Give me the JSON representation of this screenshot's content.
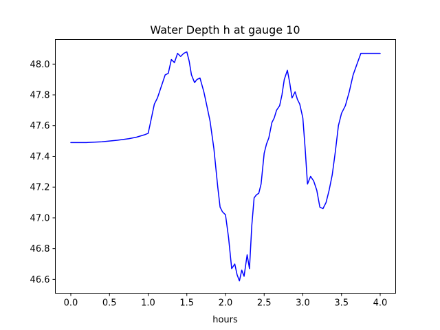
{
  "chart_data": {
    "type": "line",
    "title": "Water Depth h at gauge 10",
    "xlabel": "hours",
    "ylabel": "",
    "xlim": [
      -0.2,
      4.2
    ],
    "ylim": [
      46.51,
      48.16
    ],
    "xticks": [
      0.0,
      0.5,
      1.0,
      1.5,
      2.0,
      2.5,
      3.0,
      3.5,
      4.0
    ],
    "xtick_labels": [
      "0.0",
      "0.5",
      "1.0",
      "1.5",
      "2.0",
      "2.5",
      "3.0",
      "3.5",
      "4.0"
    ],
    "yticks": [
      46.6,
      46.8,
      47.0,
      47.2,
      47.4,
      47.6,
      47.8,
      48.0
    ],
    "ytick_labels": [
      "46.6",
      "46.8",
      "47.0",
      "47.2",
      "47.4",
      "47.6",
      "47.8",
      "48.0"
    ],
    "grid": false,
    "series": [
      {
        "color": "#0000ff",
        "x": [
          0.0,
          0.2,
          0.4,
          0.6,
          0.75,
          0.85,
          0.95,
          1.0,
          1.03,
          1.08,
          1.12,
          1.18,
          1.22,
          1.26,
          1.3,
          1.34,
          1.38,
          1.42,
          1.46,
          1.5,
          1.53,
          1.56,
          1.6,
          1.63,
          1.67,
          1.72,
          1.75,
          1.8,
          1.85,
          1.9,
          1.93,
          1.96,
          2.0,
          2.04,
          2.08,
          2.12,
          2.15,
          2.18,
          2.21,
          2.24,
          2.28,
          2.31,
          2.34,
          2.37,
          2.4,
          2.43,
          2.46,
          2.5,
          2.53,
          2.56,
          2.6,
          2.63,
          2.66,
          2.7,
          2.73,
          2.76,
          2.8,
          2.83,
          2.86,
          2.9,
          2.93,
          2.96,
          3.0,
          3.03,
          3.06,
          3.1,
          3.14,
          3.18,
          3.22,
          3.26,
          3.3,
          3.34,
          3.38,
          3.42,
          3.46,
          3.5,
          3.55,
          3.6,
          3.65,
          3.7,
          3.75,
          3.8,
          3.85,
          3.9,
          3.95,
          4.0
        ],
        "y": [
          47.49,
          47.49,
          47.495,
          47.505,
          47.515,
          47.525,
          47.54,
          47.55,
          47.62,
          47.74,
          47.78,
          47.87,
          47.93,
          47.94,
          48.03,
          48.01,
          48.07,
          48.05,
          48.07,
          48.08,
          48.02,
          47.93,
          47.88,
          47.9,
          47.91,
          47.82,
          47.75,
          47.63,
          47.45,
          47.2,
          47.07,
          47.04,
          47.02,
          46.87,
          46.67,
          46.7,
          46.63,
          46.59,
          46.66,
          46.62,
          46.76,
          46.67,
          46.95,
          47.13,
          47.15,
          47.16,
          47.22,
          47.42,
          47.48,
          47.52,
          47.62,
          47.65,
          47.7,
          47.73,
          47.8,
          47.9,
          47.96,
          47.88,
          47.78,
          47.82,
          47.77,
          47.74,
          47.65,
          47.45,
          47.22,
          47.27,
          47.24,
          47.18,
          47.07,
          47.06,
          47.1,
          47.18,
          47.28,
          47.43,
          47.6,
          47.68,
          47.73,
          47.82,
          47.93,
          48.0,
          48.07,
          48.07,
          48.07,
          48.07,
          48.07,
          48.07
        ]
      }
    ]
  }
}
